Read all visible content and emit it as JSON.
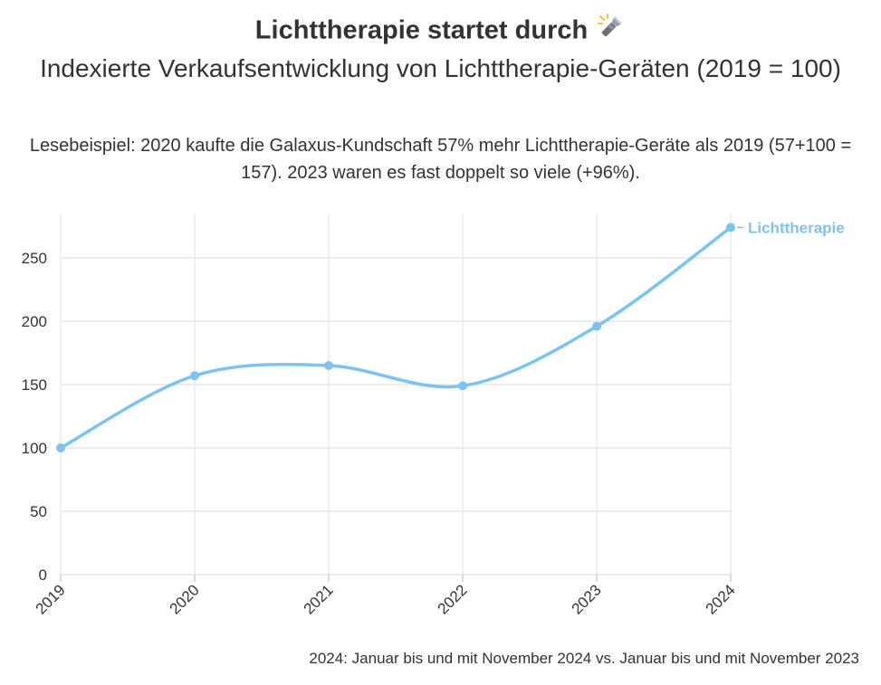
{
  "title": "Lichttherapie startet durch",
  "title_icon": "flashlight-icon",
  "subtitle": "Indexierte Verkaufsentwicklung von Lichttherapie-Geräten (2019 = 100)",
  "note": "Lesebeispiel: 2020 kaufte die Galaxus-Kundschaft 57% mehr Lichttherapie-Geräte als 2019 (57+100 = 157). 2023 waren es fast doppelt so viele (+96%).",
  "footnote": "2024: Januar bis und mit November 2024 vs. Januar bis und mit November 2023",
  "colors": {
    "series": "#7cc4ef",
    "grid": "#ececec",
    "text": "#333333"
  },
  "chart_data": {
    "type": "line",
    "title": "Lichttherapie startet durch",
    "x": [
      "2019",
      "2020",
      "2021",
      "2022",
      "2023",
      "2024"
    ],
    "series": [
      {
        "name": "Lichttherapie",
        "values": [
          100,
          157,
          165,
          149,
          196,
          274
        ]
      }
    ],
    "ylim": [
      0,
      285
    ],
    "yticks": [
      0,
      50,
      100,
      150,
      200,
      250
    ],
    "xlabel": "",
    "ylabel": "",
    "grid": true,
    "legend": "direct label at line end",
    "curve": "smooth"
  }
}
